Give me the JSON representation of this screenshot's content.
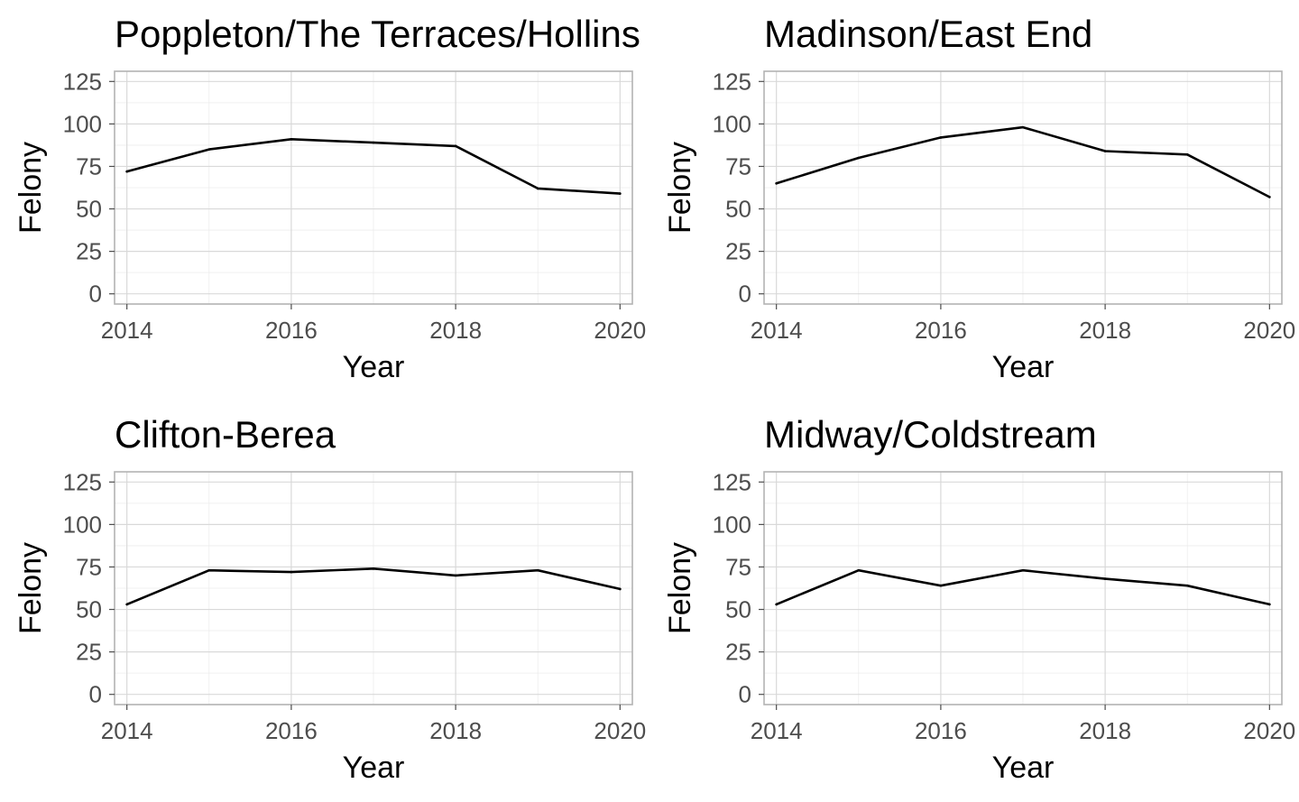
{
  "chart_data": [
    {
      "type": "line",
      "title": "Poppleton/The Terraces/Hollins",
      "xlabel": "Year",
      "ylabel": "Felony",
      "x": [
        2014,
        2015,
        2016,
        2017,
        2018,
        2019,
        2020
      ],
      "values": [
        72,
        85,
        91,
        89,
        87,
        62,
        59
      ],
      "xlim": [
        2013.85,
        2020.15
      ],
      "ylim": [
        -6,
        131
      ],
      "xticks": [
        "2014",
        "2016",
        "2018",
        "2020"
      ],
      "yticks": [
        "0",
        "25",
        "50",
        "75",
        "100",
        "125"
      ],
      "grid": true
    },
    {
      "type": "line",
      "title": "Madinson/East End",
      "xlabel": "Year",
      "ylabel": "Felony",
      "x": [
        2014,
        2015,
        2016,
        2017,
        2018,
        2019,
        2020
      ],
      "values": [
        65,
        80,
        92,
        98,
        84,
        82,
        57
      ],
      "xlim": [
        2013.85,
        2020.15
      ],
      "ylim": [
        -6,
        131
      ],
      "xticks": [
        "2014",
        "2016",
        "2018",
        "2020"
      ],
      "yticks": [
        "0",
        "25",
        "50",
        "75",
        "100",
        "125"
      ],
      "grid": true
    },
    {
      "type": "line",
      "title": "Clifton-Berea",
      "xlabel": "Year",
      "ylabel": "Felony",
      "x": [
        2014,
        2015,
        2016,
        2017,
        2018,
        2019,
        2020
      ],
      "values": [
        53,
        73,
        72,
        74,
        70,
        73,
        62
      ],
      "xlim": [
        2013.85,
        2020.15
      ],
      "ylim": [
        -6,
        131
      ],
      "xticks": [
        "2014",
        "2016",
        "2018",
        "2020"
      ],
      "yticks": [
        "0",
        "25",
        "50",
        "75",
        "100",
        "125"
      ],
      "grid": true
    },
    {
      "type": "line",
      "title": "Midway/Coldstream",
      "xlabel": "Year",
      "ylabel": "Felony",
      "x": [
        2014,
        2015,
        2016,
        2017,
        2018,
        2019,
        2020
      ],
      "values": [
        53,
        73,
        64,
        73,
        68,
        64,
        53
      ],
      "xlim": [
        2013.85,
        2020.15
      ],
      "ylim": [
        -6,
        131
      ],
      "xticks": [
        "2014",
        "2016",
        "2018",
        "2020"
      ],
      "yticks": [
        "0",
        "25",
        "50",
        "75",
        "100",
        "125"
      ],
      "grid": true
    }
  ]
}
